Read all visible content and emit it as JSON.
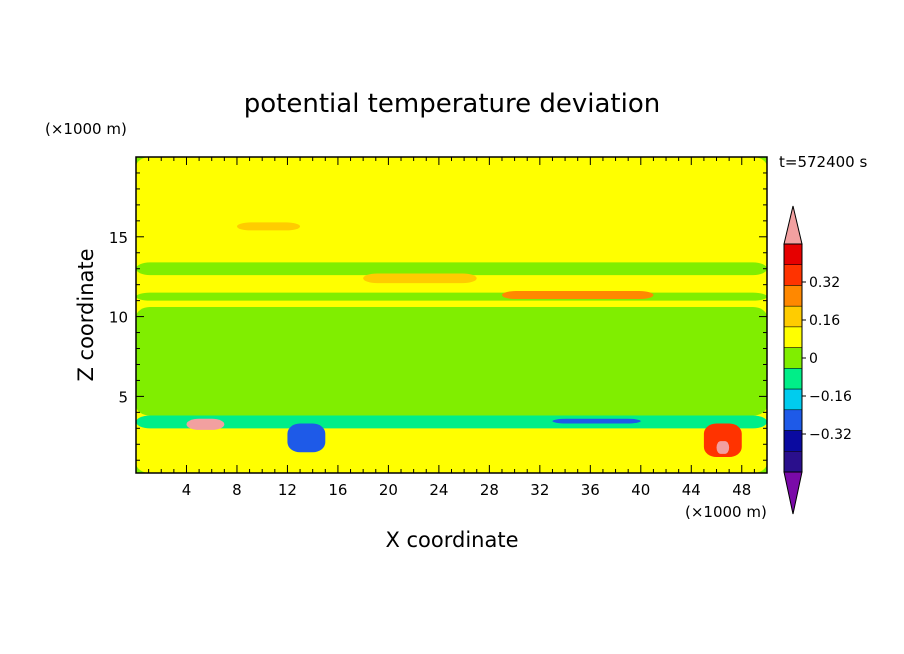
{
  "chart_data": {
    "type": "heatmap",
    "title": "potential temperature deviation",
    "xlabel": "X coordinate",
    "ylabel": "Z coordinate",
    "x_unit": "(×1000 m)",
    "y_unit": "(×1000 m)",
    "time_label": "t=572400 s",
    "xlim": [
      0,
      50
    ],
    "ylim": [
      0.2,
      20
    ],
    "x_ticks": [
      4,
      8,
      12,
      16,
      20,
      24,
      28,
      32,
      36,
      40,
      44,
      48
    ],
    "y_ticks": [
      5,
      10,
      15
    ],
    "colorbar": {
      "levels": [
        -0.48,
        -0.4,
        -0.32,
        -0.24,
        -0.16,
        -0.08,
        0,
        0.08,
        0.16,
        0.24,
        0.32,
        0.4,
        0.48
      ],
      "colors": [
        "#7a0aa8",
        "#2a0f8c",
        "#0a0aa0",
        "#1e5ae8",
        "#00ccee",
        "#00ee88",
        "#80ee00",
        "#ffff00",
        "#ffcc00",
        "#ff8800",
        "#ff3300",
        "#e60000",
        "#f2a0a0"
      ],
      "tick_labels": [
        "0.32",
        "0.16",
        "0",
        "−0.16",
        "−0.32"
      ],
      "tick_values": [
        0.32,
        0.16,
        0,
        -0.16,
        -0.32
      ]
    },
    "regions": [
      {
        "x": [
          0,
          50
        ],
        "z": [
          0.2,
          20
        ],
        "value": 0.02
      },
      {
        "x": [
          0,
          50
        ],
        "z": [
          3.8,
          10.6
        ],
        "value": -0.03
      },
      {
        "x": [
          0,
          50
        ],
        "z": [
          11,
          11.5
        ],
        "value": -0.08
      },
      {
        "x": [
          0,
          50
        ],
        "z": [
          12.6,
          13.4
        ],
        "value": -0.02
      },
      {
        "x": [
          18,
          27
        ],
        "z": [
          12.1,
          12.7
        ],
        "value": 0.12
      },
      {
        "x": [
          29,
          41
        ],
        "z": [
          11.1,
          11.6
        ],
        "value": 0.2
      },
      {
        "x": [
          8,
          13
        ],
        "z": [
          15.4,
          15.9
        ],
        "value": 0.1
      },
      {
        "x": [
          0,
          50
        ],
        "z": [
          3,
          3.8
        ],
        "value": -0.1
      },
      {
        "x": [
          4,
          7
        ],
        "z": [
          2.9,
          3.6
        ],
        "value": 0.42
      },
      {
        "x": [
          12,
          15
        ],
        "z": [
          1.5,
          3.3
        ],
        "value": -0.3
      },
      {
        "x": [
          33,
          40
        ],
        "z": [
          3.3,
          3.6
        ],
        "value": -0.3
      },
      {
        "x": [
          45,
          48
        ],
        "z": [
          1.2,
          3.3
        ],
        "value": 0.3
      },
      {
        "x": [
          46,
          47
        ],
        "z": [
          1.4,
          2.2
        ],
        "value": 0.44
      }
    ]
  }
}
